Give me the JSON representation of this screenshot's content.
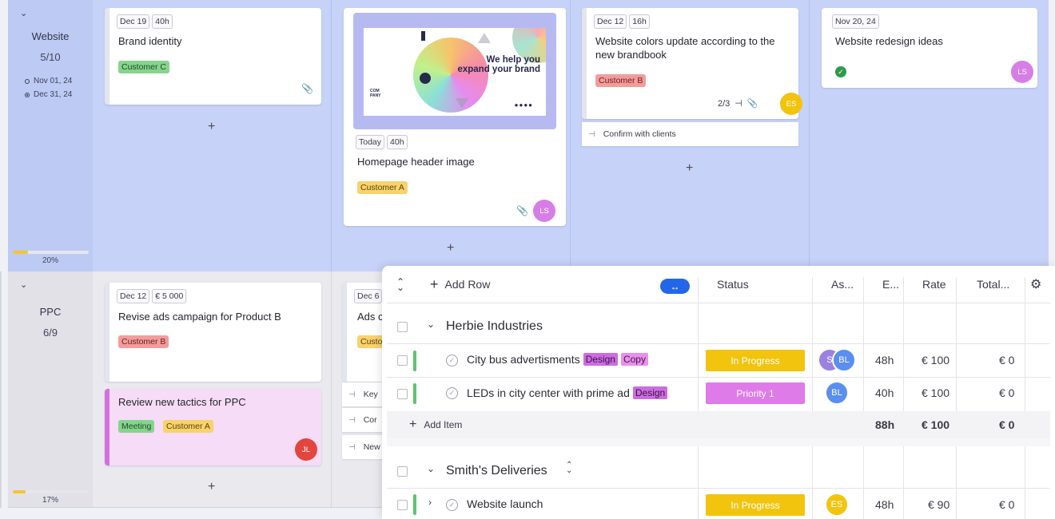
{
  "lanes": {
    "website": {
      "title": "Website",
      "count": "5/10",
      "start_date": "Nov 01, 24",
      "end_date": "Dec 31, 24",
      "progress_percent": 20,
      "progress_label": "20%"
    },
    "ppc": {
      "title": "PPC",
      "count": "6/9",
      "progress_percent": 17,
      "progress_label": "17%"
    }
  },
  "cards": {
    "brand_identity": {
      "date": "Dec 19",
      "hours": "40h",
      "title": "Brand identity",
      "tag": "Customer C"
    },
    "homepage_header": {
      "date": "Today",
      "hours": "40h",
      "title": "Homepage header image",
      "tag": "Customer A",
      "avatar": "LS",
      "poster_line1": "We help you",
      "poster_line2": "expand your brand",
      "poster_logo": "COM\nPANY"
    },
    "website_colors": {
      "date": "Dec 12",
      "hours": "16h",
      "title": "Website colors update according to the new brandbook",
      "tag": "Customer B",
      "subtasks": "2/3",
      "avatar": "ES",
      "subtask_item": "Confirm with clients"
    },
    "redesign_ideas": {
      "date": "Nov 20, 24",
      "title": "Website redesign ideas",
      "avatar": "LS"
    },
    "revise_ads": {
      "date": "Dec 12",
      "budget": "€ 5 000",
      "title": "Revise ads campaign for Product B",
      "tag": "Customer B"
    },
    "ads_partial": {
      "date": "Dec 6",
      "title": "Ads c",
      "tag": "Custo",
      "sub1": "Key",
      "sub2": "Cor",
      "sub3": "New"
    },
    "review_tactics": {
      "title": "Review new tactics for PPC",
      "tag1": "Meeting",
      "tag2": "Customer A",
      "avatar": "JL"
    }
  },
  "board": {
    "add_symbol": "+"
  },
  "table": {
    "toolbar": {
      "add_row": "Add Row",
      "toggle_icon": "↔"
    },
    "headers": {
      "status": "Status",
      "assignee": "As...",
      "estimate": "E...",
      "rate": "Rate",
      "total": "Total..."
    },
    "groups": [
      {
        "name": "Herbie Industries",
        "rows": [
          {
            "name": "City bus advertisments",
            "tags": [
              "Design",
              "Copy"
            ],
            "status": "In Progress",
            "assignees": [
              "S",
              "BL"
            ],
            "estimate": "48h",
            "rate": "€ 100",
            "total": "€ 0"
          },
          {
            "name": "LEDs in city center with prime ad",
            "tags": [
              "Design"
            ],
            "status": "Priority 1",
            "assignees": [
              "BL"
            ],
            "estimate": "40h",
            "rate": "€ 100",
            "total": "€ 0"
          }
        ],
        "add_item": "Add Item",
        "sum_estimate": "88h",
        "sum_rate": "€ 100",
        "sum_total": "€ 0"
      },
      {
        "name": "Smith's Deliveries",
        "rows": [
          {
            "name": "Website launch",
            "status": "In Progress",
            "assignees": [
              "ES"
            ],
            "estimate": "48h",
            "rate": "€ 90",
            "total": "€ 0"
          }
        ]
      }
    ]
  },
  "colors": {
    "in_progress": "#f2c40e",
    "priority_1": "#df7ae9",
    "accent": "#2366e8",
    "lane_website": "#c7d2f8"
  }
}
